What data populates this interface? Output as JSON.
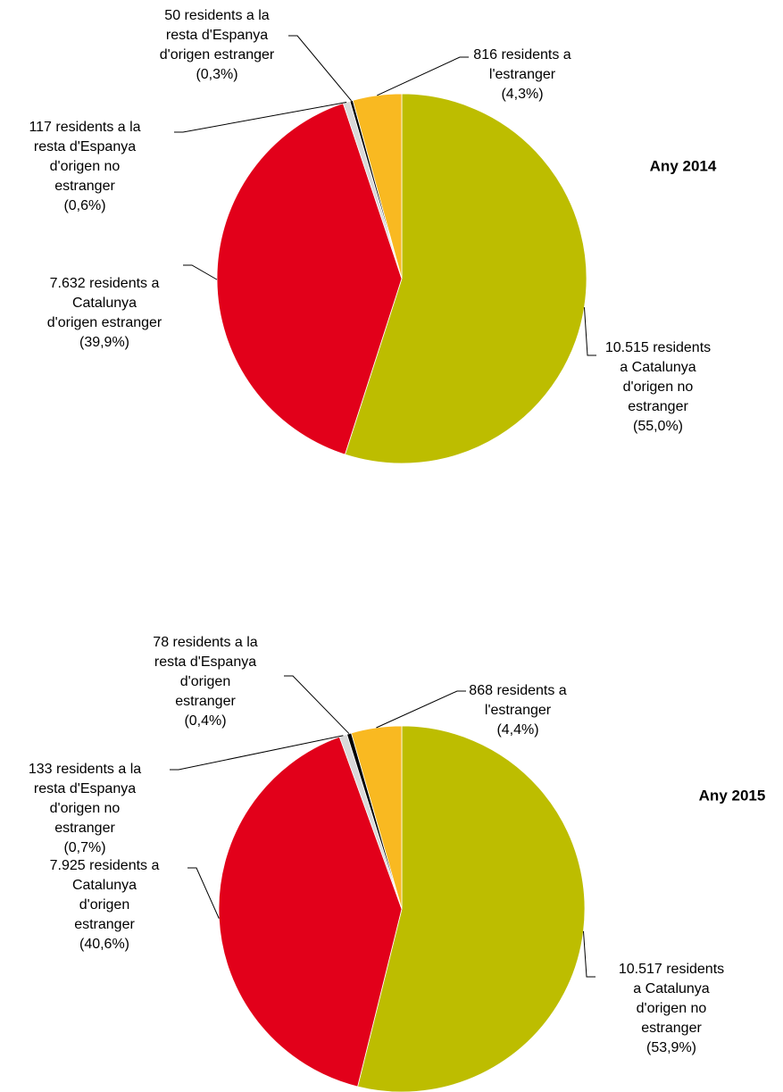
{
  "chart_data": [
    {
      "type": "pie",
      "title": "Any 2014",
      "values": [
        10515,
        7632,
        117,
        50,
        816
      ],
      "value_labels": [
        [
          "10.515 residents",
          "a Catalunya",
          "d'origen no",
          "estranger",
          "(55,0%)"
        ],
        [
          "7.632 residents a",
          "Catalunya",
          "d'origen estranger",
          "(39,9%)"
        ],
        [
          "117 residents a la",
          "resta d'Espanya",
          "d'origen no",
          "estranger",
          "(0,6%)"
        ],
        [
          "50 residents a la",
          "resta d'Espanya",
          "d'origen estranger",
          "(0,3%)"
        ],
        [
          "816 residents a",
          "l'estranger",
          "(4,3%)"
        ]
      ],
      "colors": [
        "#bdbd00",
        "#e2001a",
        "#d9d9d9",
        "#000000",
        "#f9b921"
      ]
    },
    {
      "type": "pie",
      "title": "Any 2015",
      "values": [
        10517,
        7925,
        133,
        78,
        868
      ],
      "value_labels": [
        [
          "10.517 residents",
          "a Catalunya",
          "d'origen no",
          "estranger",
          "(53,9%)"
        ],
        [
          "7.925 residents a",
          "Catalunya",
          "d'origen",
          "estranger",
          "(40,6%)"
        ],
        [
          "133 residents a la",
          "resta d'Espanya",
          "d'origen no",
          "estranger",
          "(0,7%)"
        ],
        [
          "78 residents a la",
          "resta d'Espanya",
          "d'origen",
          "estranger",
          "(0,4%)"
        ],
        [
          "868 residents a",
          "l'estranger",
          "(4,4%)"
        ]
      ],
      "colors": [
        "#bdbd00",
        "#e2001a",
        "#d9d9d9",
        "#000000",
        "#f9b921"
      ]
    }
  ]
}
